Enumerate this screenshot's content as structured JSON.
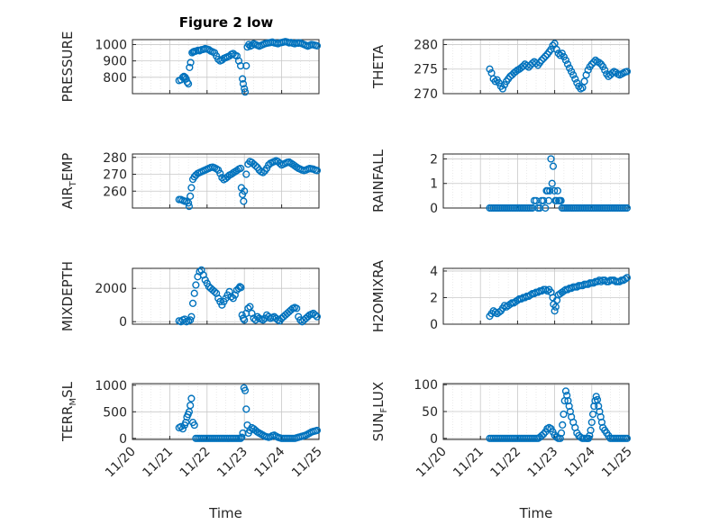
{
  "figure": {
    "title": "Figure 2 low",
    "marker_color": "#0072BD",
    "x_tick_labels": [
      "11/20",
      "11/21",
      "11/22",
      "11/23",
      "11/24",
      "11/25"
    ],
    "xlabel": "Time"
  },
  "chart_data": [
    {
      "type": "scatter",
      "ylabel": "PRESSURE",
      "xlim": [
        0,
        5
      ],
      "ylim": [
        700,
        1030
      ],
      "yticks": [
        800,
        900,
        1000
      ],
      "grid": true,
      "x": [
        1.25,
        1.3,
        1.35,
        1.38,
        1.41,
        1.44,
        1.47,
        1.5,
        1.53,
        1.56,
        1.6,
        1.63,
        1.66,
        1.7,
        1.76,
        1.8,
        1.85,
        1.9,
        1.95,
        2.0,
        2.05,
        2.1,
        2.15,
        2.2,
        2.25,
        2.3,
        2.35,
        2.4,
        2.45,
        2.5,
        2.55,
        2.6,
        2.65,
        2.7,
        2.75,
        2.8,
        2.85,
        2.9,
        2.95,
        2.97,
        3.0,
        3.02,
        3.05,
        3.08,
        3.12,
        3.16,
        3.2,
        3.25,
        3.3,
        3.35,
        3.4,
        3.45,
        3.5,
        3.55,
        3.6,
        3.65,
        3.7,
        3.75,
        3.8,
        3.85,
        3.9,
        3.95,
        4.0,
        4.05,
        4.1,
        4.15,
        4.2,
        4.25,
        4.3,
        4.35,
        4.4,
        4.45,
        4.5,
        4.55,
        4.6,
        4.65,
        4.7,
        4.75,
        4.8,
        4.85,
        4.9,
        4.95
      ],
      "y": [
        780,
        785,
        800,
        805,
        800,
        790,
        770,
        760,
        860,
        890,
        950,
        955,
        958,
        960,
        965,
        962,
        968,
        970,
        975,
        972,
        968,
        960,
        955,
        950,
        930,
        910,
        900,
        905,
        915,
        920,
        925,
        930,
        940,
        945,
        935,
        930,
        900,
        870,
        790,
        760,
        730,
        710,
        870,
        985,
        1000,
        990,
        995,
        1005,
        1000,
        995,
        990,
        995,
        1000,
        1005,
        1008,
        1010,
        1012,
        1015,
        1010,
        1008,
        1005,
        1010,
        1012,
        1015,
        1018,
        1015,
        1010,
        1012,
        1008,
        1005,
        1010,
        1008,
        1010,
        1005,
        1000,
        995,
        990,
        995,
        1000,
        998,
        995,
        992
      ]
    },
    {
      "type": "scatter",
      "ylabel": "THETA",
      "xlim": [
        0,
        5
      ],
      "ylim": [
        270,
        281
      ],
      "yticks": [
        270,
        275,
        280
      ],
      "grid": true,
      "x": [
        1.25,
        1.3,
        1.35,
        1.4,
        1.45,
        1.5,
        1.55,
        1.6,
        1.65,
        1.7,
        1.75,
        1.8,
        1.85,
        1.9,
        1.95,
        2.0,
        2.05,
        2.1,
        2.15,
        2.2,
        2.25,
        2.3,
        2.35,
        2.4,
        2.45,
        2.5,
        2.55,
        2.6,
        2.65,
        2.7,
        2.75,
        2.8,
        2.85,
        2.9,
        2.95,
        3.0,
        3.05,
        3.1,
        3.15,
        3.2,
        3.25,
        3.3,
        3.35,
        3.4,
        3.45,
        3.5,
        3.55,
        3.6,
        3.65,
        3.7,
        3.75,
        3.8,
        3.85,
        3.9,
        3.95,
        4.0,
        4.05,
        4.1,
        4.15,
        4.2,
        4.25,
        4.3,
        4.35,
        4.4,
        4.45,
        4.5,
        4.55,
        4.6,
        4.65,
        4.7,
        4.75,
        4.8,
        4.85,
        4.9,
        4.95
      ],
      "y": [
        275,
        274.2,
        273,
        272.5,
        272.8,
        272.2,
        271.5,
        271,
        271.8,
        272.5,
        273,
        273.5,
        273.8,
        274.2,
        274.5,
        274.8,
        275,
        275.3,
        275.6,
        276,
        275.7,
        275.4,
        275.8,
        276.2,
        276.5,
        276.2,
        275.8,
        276.3,
        276.8,
        277.2,
        277.6,
        278,
        278.5,
        279,
        279.8,
        280.2,
        279,
        278.2,
        277.8,
        278.2,
        277.5,
        276.8,
        276,
        275.2,
        274.5,
        273.8,
        273,
        272.2,
        271.5,
        271,
        271.2,
        272.5,
        273.8,
        274.8,
        275.5,
        276,
        276.4,
        276.8,
        276.5,
        276.3,
        276,
        275.5,
        274.8,
        274,
        273.5,
        273.8,
        274.2,
        274.5,
        274.3,
        274,
        273.8,
        274,
        274.2,
        274.4,
        274.5
      ]
    },
    {
      "type": "scatter",
      "ylabel": "AIR_TEMP",
      "ylabel_parts": [
        "AIR",
        "T",
        "EMP"
      ],
      "xlim": [
        0,
        5
      ],
      "ylim": [
        250,
        282
      ],
      "yticks": [
        260,
        270,
        280
      ],
      "grid": true,
      "x": [
        1.25,
        1.3,
        1.35,
        1.4,
        1.45,
        1.5,
        1.52,
        1.55,
        1.58,
        1.62,
        1.66,
        1.7,
        1.75,
        1.8,
        1.85,
        1.9,
        1.95,
        2.0,
        2.05,
        2.1,
        2.15,
        2.2,
        2.25,
        2.3,
        2.35,
        2.4,
        2.45,
        2.5,
        2.55,
        2.6,
        2.65,
        2.7,
        2.75,
        2.8,
        2.85,
        2.9,
        2.92,
        2.95,
        2.98,
        3.0,
        3.05,
        3.1,
        3.15,
        3.2,
        3.25,
        3.3,
        3.35,
        3.4,
        3.45,
        3.5,
        3.55,
        3.6,
        3.65,
        3.7,
        3.75,
        3.8,
        3.85,
        3.9,
        3.95,
        4.0,
        4.05,
        4.1,
        4.15,
        4.2,
        4.25,
        4.3,
        4.35,
        4.4,
        4.45,
        4.5,
        4.55,
        4.6,
        4.65,
        4.7,
        4.75,
        4.8,
        4.85,
        4.9,
        4.95
      ],
      "y": [
        255,
        255,
        254.5,
        254,
        254,
        253,
        251,
        257,
        262,
        267,
        268.5,
        269.5,
        270.5,
        271,
        271.5,
        272,
        272.5,
        273,
        273.5,
        274,
        274.2,
        273.8,
        273.2,
        272.5,
        270.5,
        268,
        266.8,
        267.5,
        268.5,
        269.5,
        270,
        270.8,
        271.5,
        272.2,
        273,
        273.5,
        262,
        258,
        254,
        260,
        270,
        276,
        277.5,
        277,
        276,
        275,
        274,
        272.5,
        271.5,
        271,
        272,
        273.5,
        275.5,
        276.5,
        277,
        277.5,
        278,
        277.5,
        276.5,
        275.5,
        276,
        276.5,
        277,
        277.2,
        276.5,
        275.8,
        275,
        274.2,
        273.5,
        273,
        272.5,
        272.2,
        272.5,
        273,
        273.4,
        273.2,
        273,
        272.5,
        272.2
      ]
    },
    {
      "type": "scatter",
      "ylabel": "RAINFALL",
      "xlim": [
        0,
        5
      ],
      "ylim": [
        0,
        2.2
      ],
      "yticks": [
        0,
        1,
        2
      ],
      "grid": true,
      "x": [
        1.25,
        1.3,
        1.35,
        1.4,
        1.45,
        1.5,
        1.55,
        1.6,
        1.65,
        1.7,
        1.75,
        1.8,
        1.85,
        1.9,
        1.95,
        2.0,
        2.05,
        2.1,
        2.15,
        2.2,
        2.25,
        2.3,
        2.35,
        2.4,
        2.45,
        2.5,
        2.55,
        2.6,
        2.65,
        2.7,
        2.75,
        2.78,
        2.81,
        2.84,
        2.87,
        2.9,
        2.93,
        2.96,
        2.99,
        3.02,
        3.05,
        3.08,
        3.11,
        3.14,
        3.17,
        3.2,
        3.25,
        3.3,
        3.35,
        3.4,
        3.45,
        3.5,
        3.55,
        3.6,
        3.65,
        3.7,
        3.75,
        3.8,
        3.85,
        3.9,
        3.95,
        4.0,
        4.05,
        4.1,
        4.15,
        4.2,
        4.25,
        4.3,
        4.35,
        4.4,
        4.45,
        4.5,
        4.55,
        4.6,
        4.65,
        4.7,
        4.75,
        4.8,
        4.85,
        4.9,
        4.95
      ],
      "y": [
        0,
        0,
        0,
        0,
        0,
        0,
        0,
        0,
        0,
        0,
        0,
        0,
        0,
        0,
        0,
        0,
        0,
        0,
        0,
        0,
        0,
        0,
        0,
        0,
        0.3,
        0.3,
        0,
        0,
        0.3,
        0.3,
        0,
        0.7,
        0.7,
        0.3,
        0.7,
        2.0,
        1.0,
        1.7,
        0.7,
        0.3,
        0.3,
        0.7,
        0.3,
        0.3,
        0.3,
        0,
        0,
        0,
        0,
        0,
        0,
        0,
        0,
        0,
        0,
        0,
        0,
        0,
        0,
        0,
        0,
        0,
        0,
        0,
        0,
        0,
        0,
        0,
        0,
        0,
        0,
        0,
        0,
        0,
        0,
        0,
        0,
        0,
        0,
        0,
        0
      ]
    },
    {
      "type": "scatter",
      "ylabel": "MIXDEPTH",
      "xlim": [
        0,
        5
      ],
      "ylim": [
        -150,
        3200
      ],
      "yticks": [
        0,
        2000
      ],
      "grid": true,
      "x": [
        1.25,
        1.3,
        1.35,
        1.4,
        1.45,
        1.5,
        1.55,
        1.58,
        1.62,
        1.66,
        1.7,
        1.75,
        1.8,
        1.85,
        1.9,
        1.95,
        2.0,
        2.05,
        2.1,
        2.15,
        2.2,
        2.25,
        2.3,
        2.35,
        2.4,
        2.45,
        2.5,
        2.55,
        2.6,
        2.65,
        2.7,
        2.75,
        2.8,
        2.85,
        2.88,
        2.91,
        2.94,
        2.97,
        3.0,
        3.05,
        3.1,
        3.15,
        3.2,
        3.25,
        3.3,
        3.35,
        3.4,
        3.45,
        3.5,
        3.55,
        3.6,
        3.65,
        3.7,
        3.75,
        3.8,
        3.85,
        3.9,
        3.95,
        4.0,
        4.05,
        4.1,
        4.15,
        4.2,
        4.25,
        4.3,
        4.35,
        4.4,
        4.45,
        4.5,
        4.55,
        4.6,
        4.65,
        4.7,
        4.75,
        4.8,
        4.85,
        4.9,
        4.95
      ],
      "y": [
        50,
        0,
        100,
        150,
        0,
        50,
        100,
        300,
        1100,
        1700,
        2200,
        2700,
        3000,
        3100,
        2800,
        2500,
        2300,
        2100,
        2000,
        1900,
        1800,
        1700,
        1400,
        1200,
        1000,
        1200,
        1400,
        1600,
        1800,
        1500,
        1400,
        1600,
        1900,
        2000,
        2100,
        2050,
        400,
        200,
        100,
        500,
        800,
        900,
        500,
        200,
        100,
        300,
        200,
        150,
        100,
        200,
        400,
        300,
        200,
        250,
        300,
        200,
        100,
        50,
        200,
        300,
        400,
        500,
        600,
        700,
        800,
        850,
        800,
        300,
        100,
        0,
        100,
        200,
        300,
        400,
        450,
        500,
        400,
        300
      ]
    },
    {
      "type": "scatter",
      "ylabel": "H2OMIXRA",
      "xlim": [
        0,
        5
      ],
      "ylim": [
        0,
        4.2
      ],
      "yticks": [
        0,
        2,
        4
      ],
      "grid": true,
      "x": [
        1.25,
        1.3,
        1.35,
        1.4,
        1.45,
        1.5,
        1.55,
        1.6,
        1.65,
        1.7,
        1.75,
        1.8,
        1.85,
        1.9,
        1.95,
        2.0,
        2.05,
        2.1,
        2.15,
        2.2,
        2.25,
        2.3,
        2.35,
        2.4,
        2.45,
        2.5,
        2.55,
        2.6,
        2.65,
        2.7,
        2.75,
        2.8,
        2.85,
        2.9,
        2.95,
        2.97,
        3.0,
        3.03,
        3.06,
        3.1,
        3.15,
        3.2,
        3.25,
        3.3,
        3.35,
        3.4,
        3.45,
        3.5,
        3.55,
        3.6,
        3.65,
        3.7,
        3.75,
        3.8,
        3.85,
        3.9,
        3.95,
        4.0,
        4.05,
        4.1,
        4.15,
        4.2,
        4.25,
        4.3,
        4.35,
        4.4,
        4.45,
        4.5,
        4.55,
        4.6,
        4.65,
        4.7,
        4.75,
        4.8,
        4.85,
        4.9,
        4.95
      ],
      "y": [
        0.6,
        0.8,
        1.0,
        0.9,
        0.8,
        0.9,
        1.0,
        1.2,
        1.4,
        1.3,
        1.4,
        1.5,
        1.6,
        1.6,
        1.7,
        1.8,
        1.9,
        1.9,
        2.0,
        2.0,
        2.1,
        2.1,
        2.2,
        2.3,
        2.3,
        2.4,
        2.4,
        2.5,
        2.5,
        2.6,
        2.6,
        2.5,
        2.6,
        2.4,
        2.0,
        1.5,
        1.0,
        1.3,
        1.8,
        2.2,
        2.3,
        2.4,
        2.5,
        2.6,
        2.6,
        2.7,
        2.7,
        2.8,
        2.8,
        2.8,
        2.9,
        2.9,
        2.9,
        3.0,
        3.0,
        3.0,
        3.1,
        3.1,
        3.1,
        3.2,
        3.2,
        3.3,
        3.2,
        3.3,
        3.3,
        3.2,
        3.2,
        3.3,
        3.3,
        3.3,
        3.2,
        3.2,
        3.2,
        3.3,
        3.3,
        3.4,
        3.5
      ]
    },
    {
      "type": "scatter",
      "ylabel": "TERR_MSL",
      "ylabel_parts": [
        "TERR",
        "M",
        "SL"
      ],
      "xlim": [
        0,
        5
      ],
      "ylim": [
        -20,
        1030
      ],
      "yticks": [
        0,
        500,
        1000
      ],
      "grid": true,
      "x": [
        1.25,
        1.3,
        1.35,
        1.4,
        1.43,
        1.46,
        1.49,
        1.52,
        1.55,
        1.58,
        1.62,
        1.66,
        1.7,
        1.75,
        1.8,
        1.85,
        1.9,
        1.95,
        2.0,
        2.05,
        2.1,
        2.15,
        2.2,
        2.25,
        2.3,
        2.35,
        2.4,
        2.45,
        2.5,
        2.55,
        2.6,
        2.65,
        2.7,
        2.75,
        2.8,
        2.85,
        2.9,
        2.93,
        2.96,
        2.99,
        3.02,
        3.05,
        3.08,
        3.11,
        3.15,
        3.2,
        3.25,
        3.3,
        3.35,
        3.4,
        3.45,
        3.5,
        3.55,
        3.6,
        3.65,
        3.7,
        3.75,
        3.8,
        3.85,
        3.9,
        3.95,
        4.0,
        4.05,
        4.1,
        4.15,
        4.2,
        4.25,
        4.3,
        4.35,
        4.4,
        4.45,
        4.5,
        4.55,
        4.6,
        4.65,
        4.7,
        4.75,
        4.8,
        4.85,
        4.9,
        4.95
      ],
      "y": [
        200,
        220,
        180,
        250,
        300,
        400,
        450,
        500,
        620,
        750,
        300,
        250,
        0,
        0,
        0,
        0,
        0,
        0,
        0,
        0,
        0,
        0,
        0,
        0,
        0,
        0,
        0,
        0,
        0,
        0,
        0,
        0,
        0,
        0,
        0,
        0,
        0,
        20,
        100,
        950,
        900,
        550,
        250,
        100,
        150,
        200,
        180,
        150,
        120,
        100,
        80,
        60,
        40,
        30,
        20,
        30,
        50,
        60,
        40,
        20,
        10,
        0,
        0,
        0,
        0,
        0,
        0,
        0,
        0,
        10,
        20,
        30,
        40,
        50,
        60,
        80,
        100,
        120,
        130,
        140,
        150
      ]
    },
    {
      "type": "scatter",
      "ylabel": "SUN_FLUX",
      "ylabel_parts": [
        "SUN",
        "F",
        "LUX"
      ],
      "xlim": [
        0,
        5
      ],
      "ylim": [
        -2,
        102
      ],
      "yticks": [
        0,
        50,
        100
      ],
      "grid": true,
      "x": [
        1.25,
        1.3,
        1.35,
        1.4,
        1.45,
        1.5,
        1.55,
        1.6,
        1.65,
        1.7,
        1.75,
        1.8,
        1.85,
        1.9,
        1.95,
        2.0,
        2.05,
        2.1,
        2.15,
        2.2,
        2.25,
        2.3,
        2.35,
        2.4,
        2.45,
        2.5,
        2.55,
        2.6,
        2.65,
        2.7,
        2.75,
        2.8,
        2.85,
        2.9,
        2.95,
        3.0,
        3.05,
        3.1,
        3.15,
        3.18,
        3.21,
        3.24,
        3.27,
        3.3,
        3.33,
        3.36,
        3.39,
        3.42,
        3.45,
        3.5,
        3.55,
        3.6,
        3.65,
        3.7,
        3.75,
        3.8,
        3.85,
        3.88,
        3.91,
        3.94,
        3.97,
        4.0,
        4.03,
        4.06,
        4.09,
        4.12,
        4.15,
        4.18,
        4.21,
        4.24,
        4.27,
        4.3,
        4.35,
        4.4,
        4.45,
        4.5,
        4.55,
        4.6,
        4.65,
        4.7,
        4.75,
        4.8,
        4.85,
        4.9,
        4.95
      ],
      "y": [
        0,
        0,
        0,
        0,
        0,
        0,
        0,
        0,
        0,
        0,
        0,
        0,
        0,
        0,
        0,
        0,
        0,
        0,
        0,
        0,
        0,
        0,
        0,
        0,
        0,
        0,
        0,
        2,
        5,
        8,
        12,
        18,
        20,
        18,
        12,
        6,
        2,
        0,
        0,
        10,
        25,
        45,
        70,
        88,
        80,
        70,
        60,
        50,
        40,
        30,
        20,
        10,
        5,
        2,
        0,
        0,
        0,
        0,
        0,
        5,
        15,
        30,
        45,
        60,
        70,
        78,
        72,
        60,
        50,
        40,
        30,
        20,
        15,
        10,
        5,
        0,
        0,
        0,
        0,
        0,
        0,
        0,
        0,
        0,
        0
      ]
    }
  ]
}
